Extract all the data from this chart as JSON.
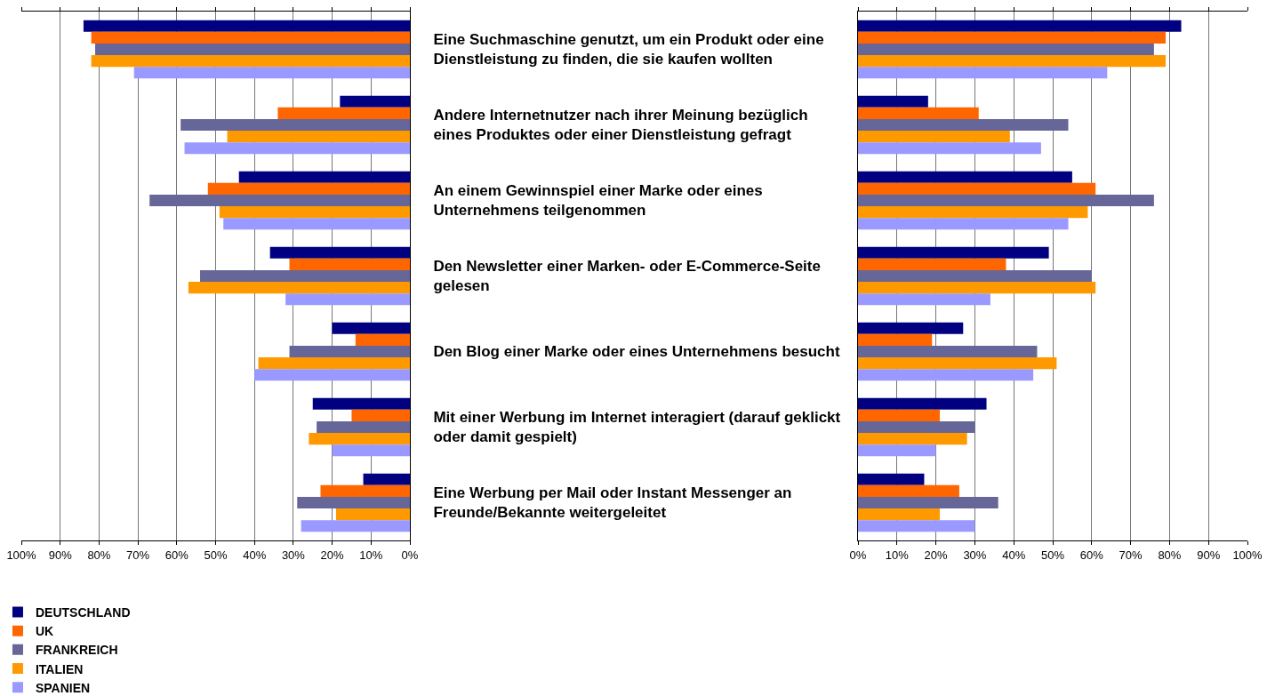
{
  "chart_data": [
    {
      "type": "bar",
      "orientation": "horizontal",
      "categories": [
        "Eine Suchmaschine genutzt, um ein Produkt oder eine\nDienstleistung zu finden, die sie kaufen wollten",
        "Andere Internetnutzer nach ihrer Meinung bezüglich\neines Produktes oder einer Dienstleistung gefragt",
        "An einem Gewinnspiel einer Marke oder eines\nUnternehmens teilgenommen",
        "Den Newsletter einer Marken- oder E-Commerce-Seite\ngelesen",
        "Den Blog einer Marke oder eines Unternehmens besucht",
        "Mit einer Werbung im Internet interagiert (darauf geklickt\noder damit gespielt)",
        "Eine Werbung per Mail oder Instant Messenger an\nFreunde/Bekannte weitergeleitet"
      ],
      "series": [
        {
          "name": "DEUTSCHLAND",
          "color": "#000080",
          "values": [
            84,
            18,
            44,
            36,
            20,
            25,
            12
          ]
        },
        {
          "name": "UK",
          "color": "#ff6600",
          "values": [
            82,
            34,
            52,
            31,
            14,
            15,
            23
          ]
        },
        {
          "name": "FRANKREICH",
          "color": "#666699",
          "values": [
            81,
            59,
            67,
            54,
            31,
            24,
            29
          ]
        },
        {
          "name": "ITALIEN",
          "color": "#ff9900",
          "values": [
            82,
            47,
            49,
            57,
            39,
            26,
            19
          ]
        },
        {
          "name": "SPANIEN",
          "color": "#9999ff",
          "values": [
            71,
            58,
            48,
            32,
            40,
            20,
            28
          ]
        }
      ],
      "xlim": [
        100,
        0
      ],
      "xticks": [
        {
          "value": 100,
          "label": "100%"
        },
        {
          "value": 90,
          "label": "90%"
        },
        {
          "value": 80,
          "label": "80%"
        },
        {
          "value": 70,
          "label": "70%"
        },
        {
          "value": 60,
          "label": "60%"
        },
        {
          "value": 50,
          "label": "50%"
        },
        {
          "value": 40,
          "label": "40%"
        },
        {
          "value": 30,
          "label": "30%"
        },
        {
          "value": 20,
          "label": "20%"
        },
        {
          "value": 10,
          "label": "10%"
        },
        {
          "value": 0,
          "label": "0%"
        }
      ],
      "grid": "x",
      "legend": "bottom left"
    },
    {
      "type": "bar",
      "orientation": "horizontal",
      "categories": [
        null,
        null,
        null,
        null,
        null,
        null,
        null
      ],
      "series": [
        {
          "color": "#000080",
          "values": [
            83,
            18,
            55,
            49,
            27,
            33,
            17
          ]
        },
        {
          "color": "#ff6600",
          "values": [
            79,
            31,
            61,
            38,
            19,
            21,
            26
          ]
        },
        {
          "color": "#666699",
          "values": [
            76,
            54,
            76,
            60,
            46,
            30,
            36
          ]
        },
        {
          "color": "#ff9900",
          "values": [
            79,
            39,
            59,
            61,
            51,
            28,
            21
          ]
        },
        {
          "color": "#9999ff",
          "values": [
            64,
            47,
            54,
            34,
            45,
            20,
            30
          ]
        }
      ],
      "xlim": [
        0,
        100
      ],
      "xticks": [
        {
          "value": 0,
          "label": "0%"
        },
        {
          "value": 10,
          "label": "10%"
        },
        {
          "value": 20,
          "label": "20%"
        },
        {
          "value": 30,
          "label": "30%"
        },
        {
          "value": 40,
          "label": "40%"
        },
        {
          "value": 50,
          "label": "50%"
        },
        {
          "value": 60,
          "label": "60%"
        },
        {
          "value": 70,
          "label": "70%"
        },
        {
          "value": 80,
          "label": "80%"
        },
        {
          "value": 90,
          "label": "90%"
        },
        {
          "value": 100,
          "label": "100%"
        }
      ],
      "grid": "x"
    }
  ]
}
